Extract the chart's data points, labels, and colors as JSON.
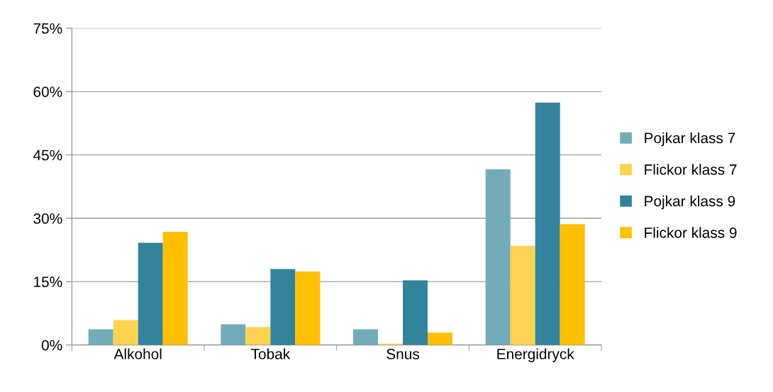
{
  "chart_data": {
    "type": "bar",
    "categories": [
      "Alkohol",
      "Tobak",
      "Snus",
      "Energidryck"
    ],
    "series": [
      {
        "name": "Pojkar klass 7",
        "color": "#72acbb",
        "values": [
          3.7,
          4.9,
          3.7,
          41.6
        ]
      },
      {
        "name": "Flickor klass 7",
        "color": "#ffd24f",
        "values": [
          5.9,
          4.2,
          0.3,
          23.5
        ]
      },
      {
        "name": "Pojkar klass 9",
        "color": "#31849b",
        "values": [
          24.2,
          18.0,
          15.3,
          57.4
        ]
      },
      {
        "name": "Flickor klass 9",
        "color": "#ffc000",
        "values": [
          26.8,
          17.4,
          2.9,
          28.6
        ]
      }
    ],
    "ylim": [
      0,
      75
    ],
    "yticks": [
      {
        "value": 0,
        "label": "0%"
      },
      {
        "value": 15,
        "label": "15%"
      },
      {
        "value": 30,
        "label": "30%"
      },
      {
        "value": 45,
        "label": "45%"
      },
      {
        "value": 60,
        "label": "60%"
      },
      {
        "value": 75,
        "label": "75%"
      }
    ],
    "grid": "y",
    "legend": "right"
  }
}
